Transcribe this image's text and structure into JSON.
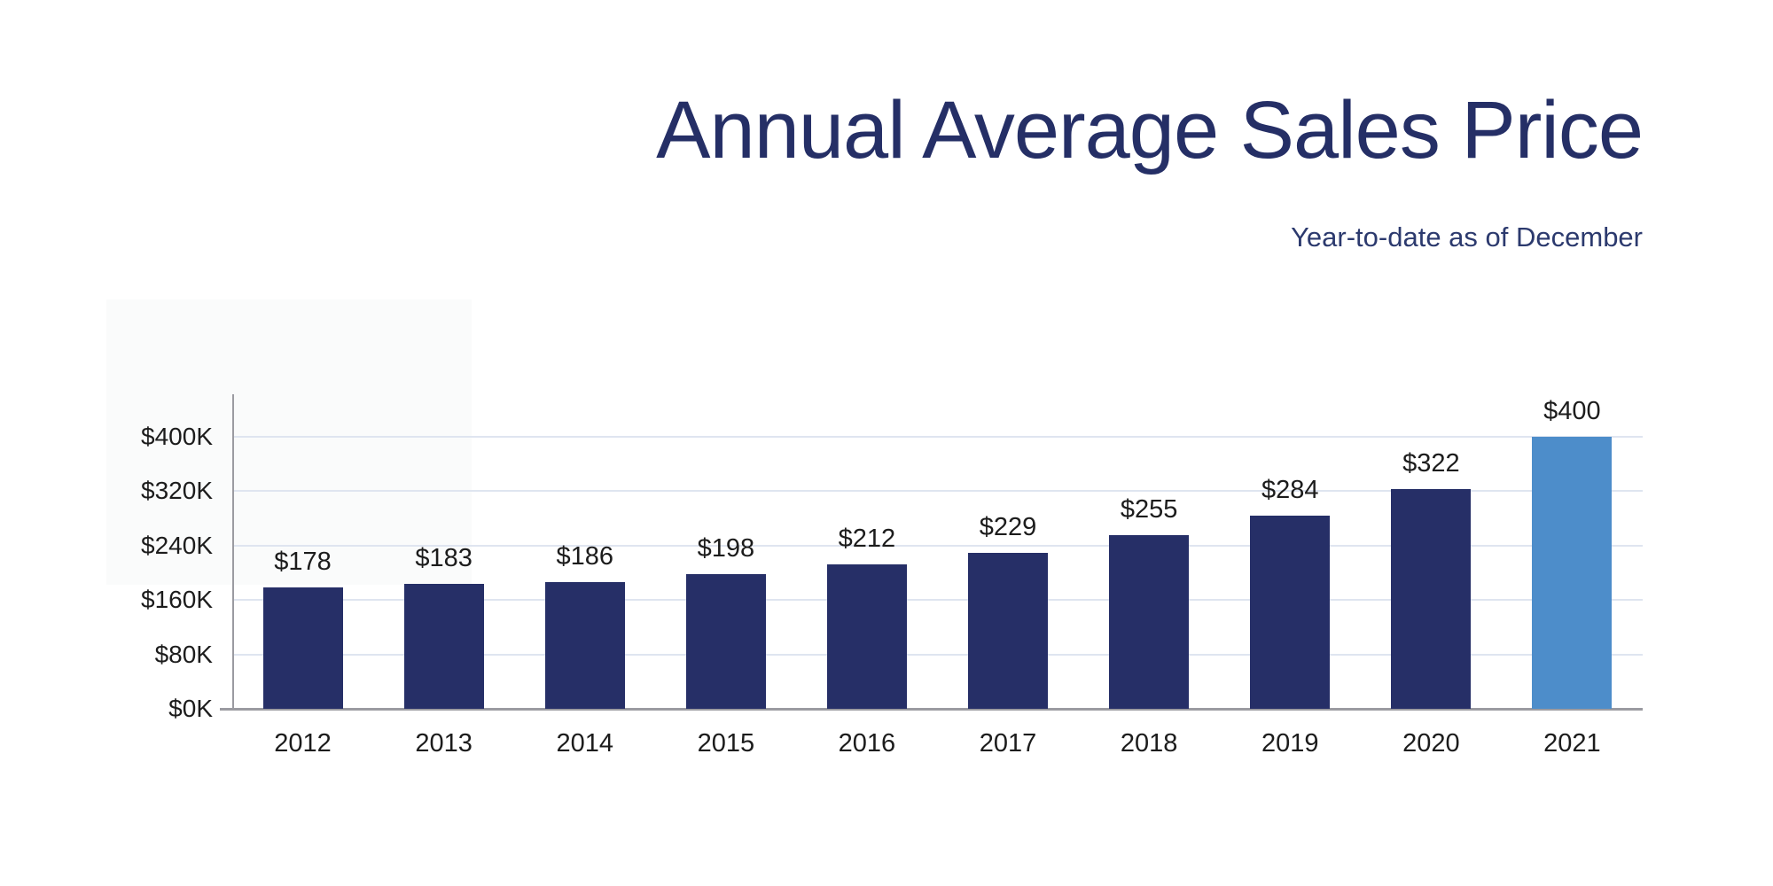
{
  "header": {
    "title": "Annual Average Sales Price",
    "subtitle": "Year-to-date as of December"
  },
  "chart_data": {
    "type": "bar",
    "title": "Annual Average Sales Price",
    "subtitle": "Year-to-date as of December",
    "categories": [
      "2012",
      "2013",
      "2014",
      "2015",
      "2016",
      "2017",
      "2018",
      "2019",
      "2020",
      "2021"
    ],
    "values": [
      178,
      183,
      186,
      198,
      212,
      229,
      255,
      284,
      322,
      400
    ],
    "bar_labels": [
      "$178",
      "$183",
      "$186",
      "$198",
      "$212",
      "$229",
      "$255",
      "$284",
      "$322",
      "$400"
    ],
    "values_unit": "K",
    "highlight_index": 9,
    "xlabel": "",
    "ylabel": "",
    "ylim": [
      0,
      400
    ],
    "yticks": [
      0,
      80,
      160,
      240,
      320,
      400
    ],
    "ytick_labels": [
      "$0K",
      "$80K",
      "$160K",
      "$240K",
      "$320K",
      "$400K"
    ],
    "grid": "horizontal",
    "legend": "none",
    "colors": {
      "bar": "#262f67",
      "highlight_bar": "#4d8dca",
      "gridline": "#dfe5f0",
      "axis": "#9b9ba1",
      "label_text": "#1c1c1c",
      "title_text": "#252f66",
      "background": "#ffffff"
    }
  }
}
